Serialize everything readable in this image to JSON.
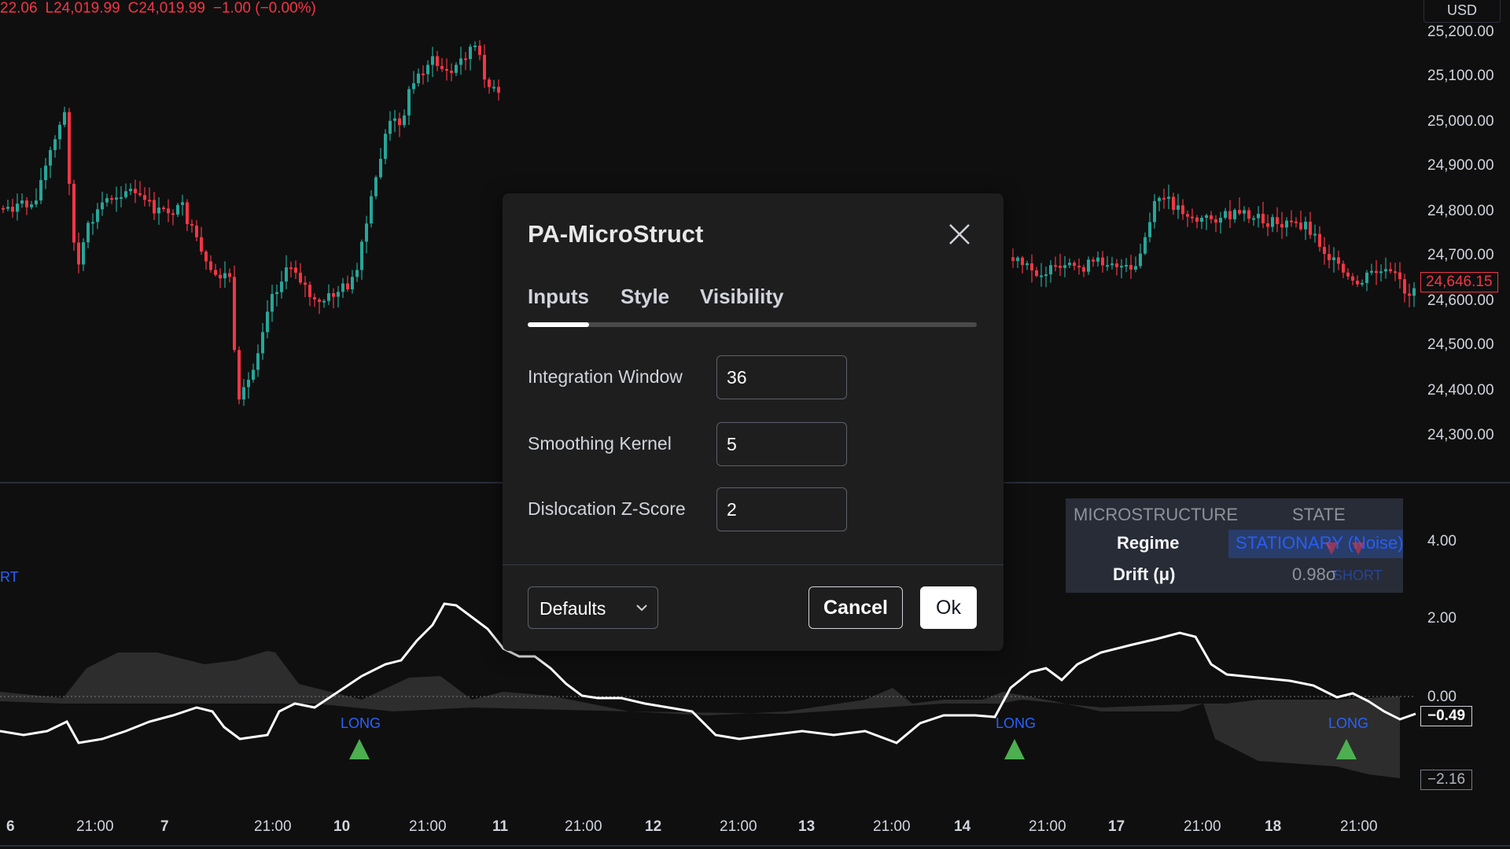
{
  "header": {
    "ohlc_prefix": "22.06",
    "low": "L24,019.99",
    "close": "C24,019.99",
    "change": "−1.00 (−0.00%)"
  },
  "currency_button": "USD",
  "price_axis": {
    "labels": [
      "25,200.00",
      "25,100.00",
      "25,000.00",
      "24,900.00",
      "24,800.00",
      "24,700.00",
      "24,600.00",
      "24,500.00",
      "24,400.00",
      "24,300.00"
    ],
    "current_price": "24,646.15"
  },
  "indicator_axis": {
    "labels": [
      "4.00",
      "2.00",
      "0.00"
    ],
    "current_value": "−0.49",
    "lower_value": "−2.16"
  },
  "time_axis": {
    "labels": [
      "6",
      "21:00",
      "7",
      "21:00",
      "10",
      "21:00",
      "11",
      "21:00",
      "12",
      "21:00",
      "13",
      "21:00",
      "14",
      "21:00",
      "17",
      "21:00",
      "18",
      "21:00"
    ]
  },
  "signals": {
    "long_label": "LONG",
    "short_label": "RT",
    "short_faded": "SHORT"
  },
  "table": {
    "header_left": "MICROSTRUCTURE",
    "header_right": "STATE",
    "rows": [
      {
        "label": "Regime",
        "value": "STATIONARY (Noise)"
      },
      {
        "label": "Drift (μ)",
        "value": "0.98σ"
      }
    ]
  },
  "colors": {
    "up": "#26a69a",
    "down": "#f23645",
    "accent_blue": "#2962ff",
    "long_green": "#4caf50"
  },
  "dialog": {
    "title": "PA-MicroStruct",
    "tabs": [
      "Inputs",
      "Style",
      "Visibility"
    ],
    "active_tab": "Inputs",
    "fields": [
      {
        "label": "Integration Window",
        "value": "36"
      },
      {
        "label": "Smoothing Kernel",
        "value": "5"
      },
      {
        "label": "Dislocation Z-Score",
        "value": "2"
      }
    ],
    "defaults_label": "Defaults",
    "cancel_label": "Cancel",
    "ok_label": "Ok"
  }
}
